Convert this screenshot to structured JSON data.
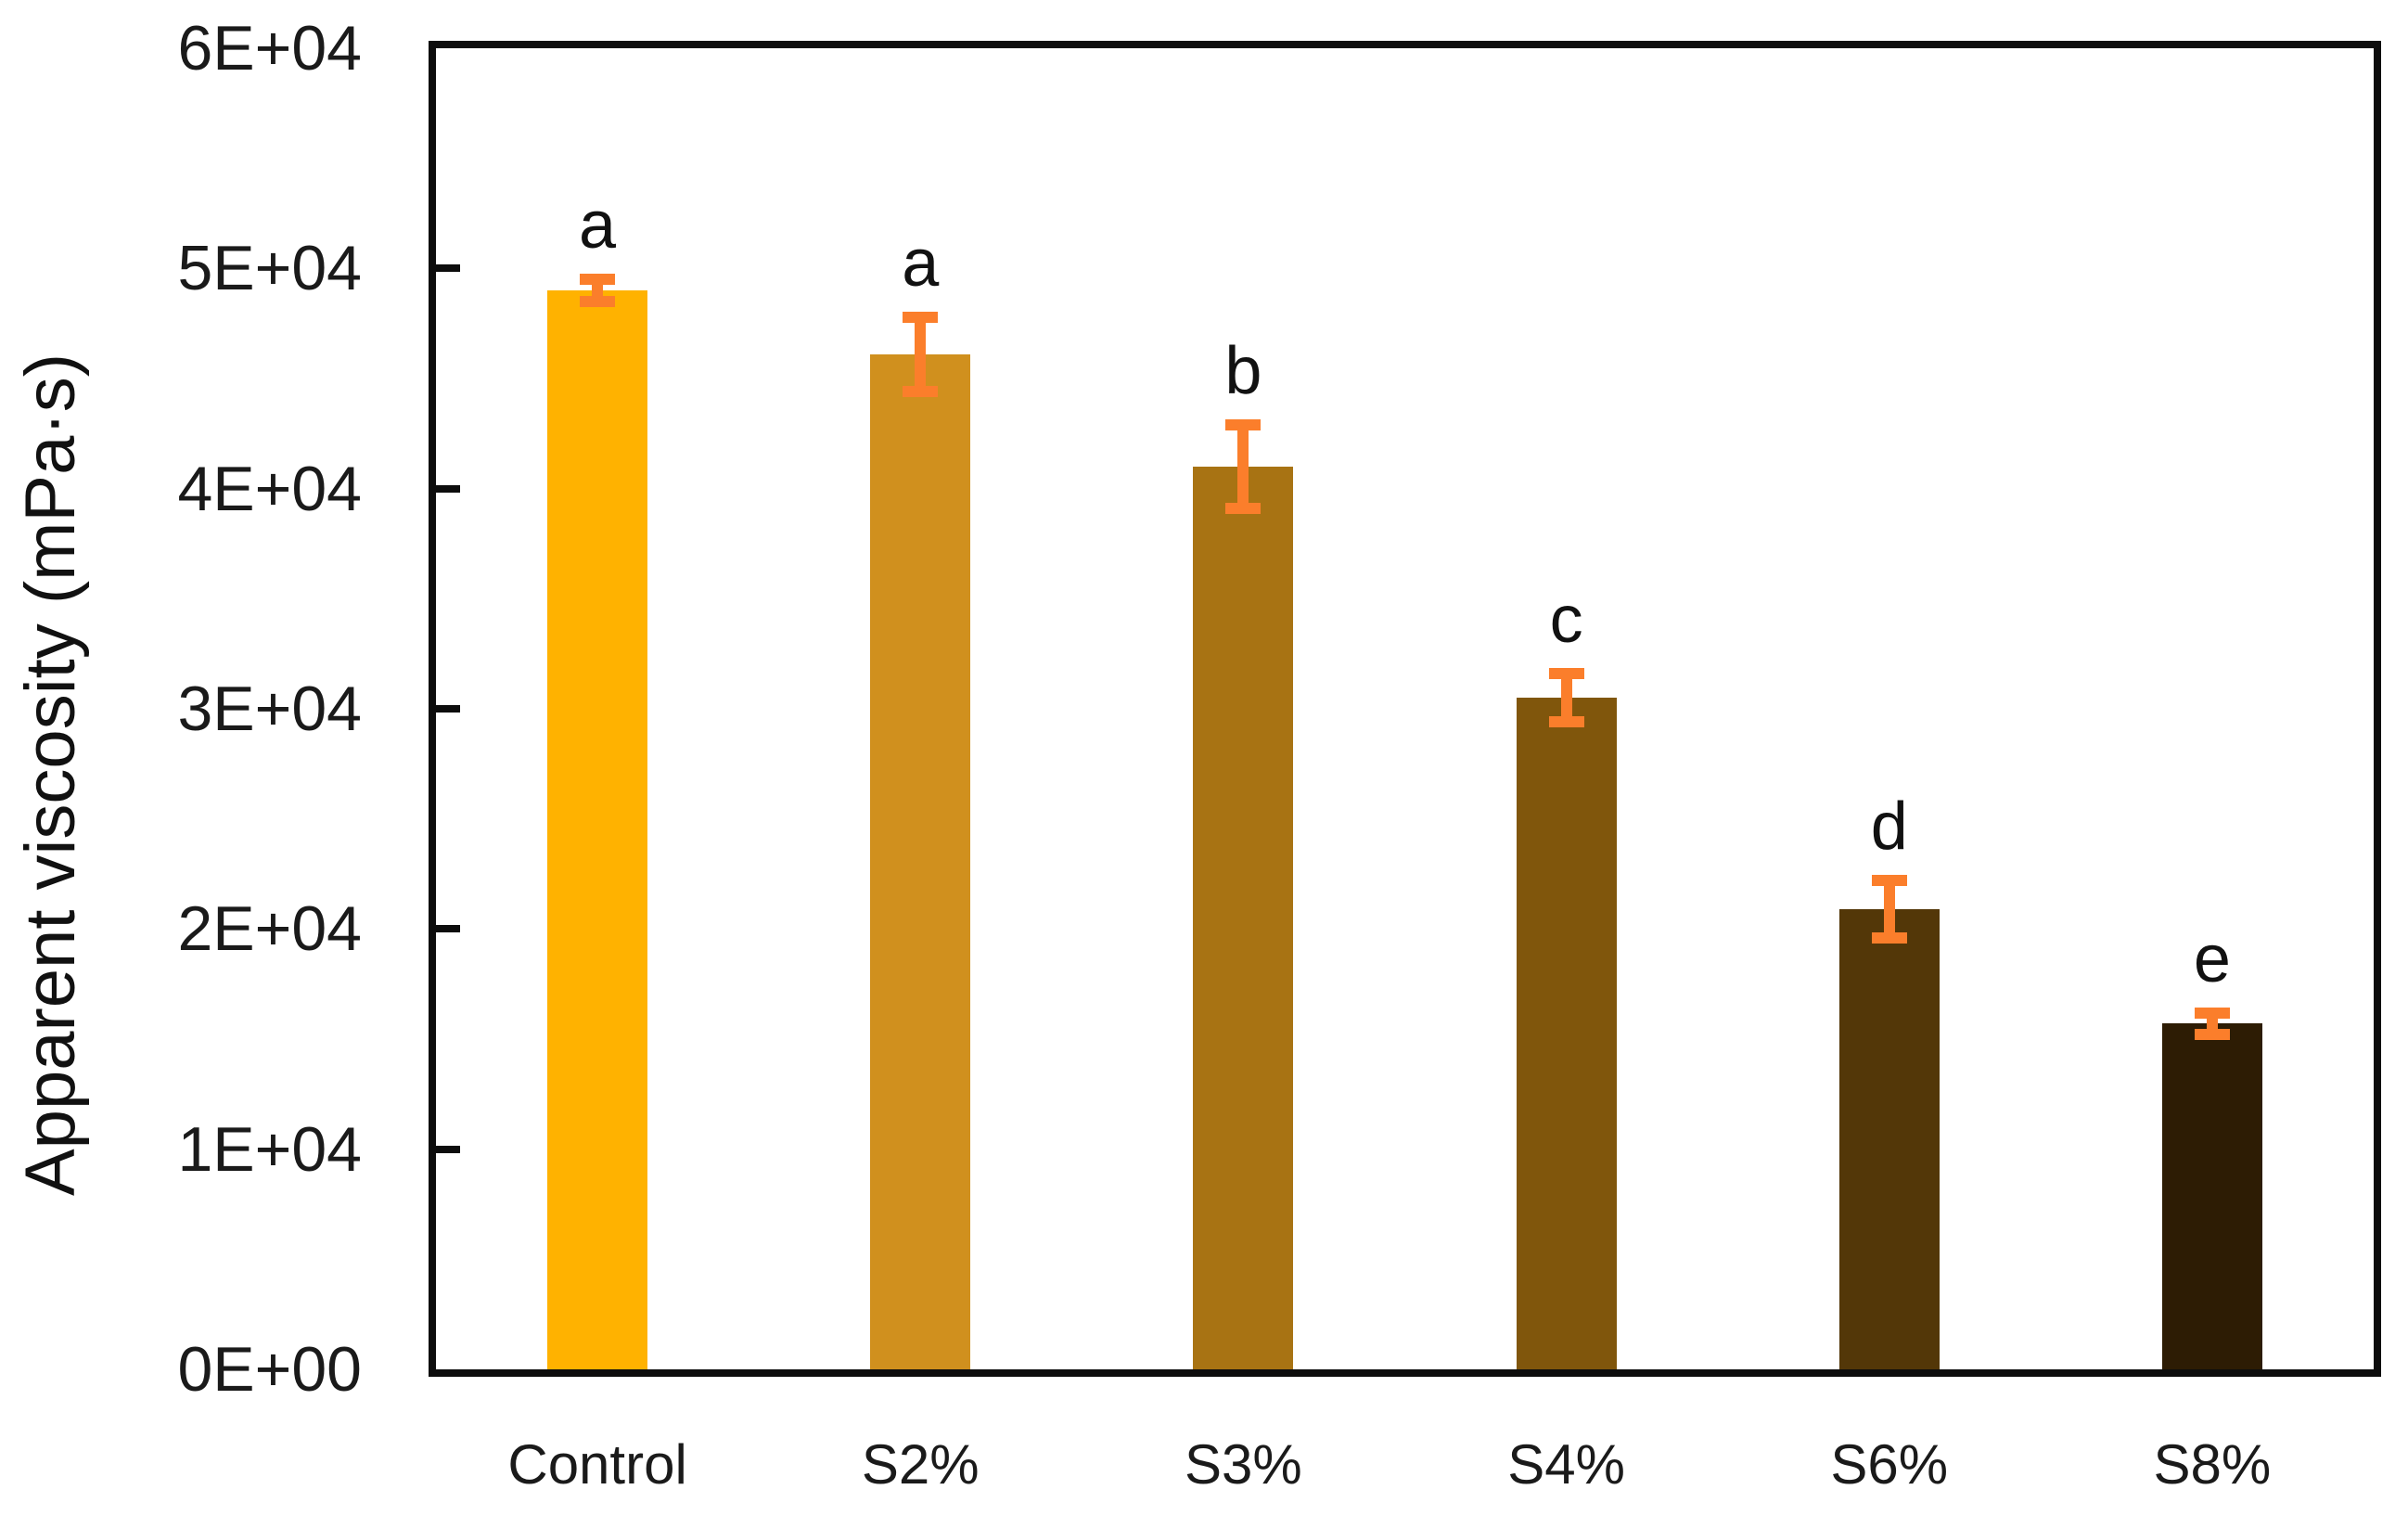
{
  "chart_data": {
    "type": "bar",
    "title": "",
    "xlabel": "",
    "ylabel": "Apparent viscosity (mPa·s)",
    "ylim": [
      0,
      60000
    ],
    "ytick_step": 10000,
    "ytick_labels": [
      "0E+00",
      "1E+04",
      "2E+04",
      "3E+04",
      "4E+04",
      "5E+04",
      "6E+04"
    ],
    "categories": [
      "Control",
      "S2%",
      "S3%",
      "S4%",
      "S6%",
      "S8%"
    ],
    "values": [
      49000,
      46100,
      41000,
      30500,
      20900,
      15700
    ],
    "errors": [
      500,
      1700,
      1900,
      1100,
      1300,
      500
    ],
    "sig_letters": [
      "a",
      "a",
      "b",
      "c",
      "d",
      "e"
    ],
    "bar_colors": [
      "#FFB200",
      "#D0901E",
      "#A87313",
      "#80560C",
      "#533708",
      "#2D1C04"
    ],
    "error_bar_color": "#FB7E2B",
    "axis_color": "#0d0d0d",
    "text_color": "#1a1a1a",
    "grid": false,
    "legend": false
  }
}
